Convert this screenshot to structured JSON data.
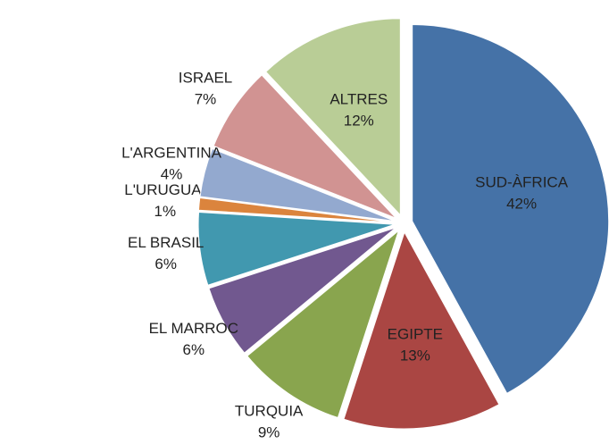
{
  "chart_data": {
    "type": "pie",
    "categories": [
      "SUD-ÀFRICA",
      "EGIPTE",
      "TURQUIA",
      "EL MARROC",
      "EL BRASIL",
      "L'URUGUAI",
      "L'ARGENTINA",
      "ISRAEL",
      "ALTRES"
    ],
    "values": [
      42,
      13,
      9,
      6,
      6,
      1,
      4,
      7,
      12
    ],
    "value_labels": [
      "42%",
      "13%",
      "9%",
      "6%",
      "6%",
      "1%",
      "4%",
      "7%",
      "12%"
    ],
    "colors": [
      "#4572a7",
      "#aa4643",
      "#89a54e",
      "#71588f",
      "#4198af",
      "#db843d",
      "#93a9cf",
      "#d19392",
      "#b9cd96"
    ]
  }
}
